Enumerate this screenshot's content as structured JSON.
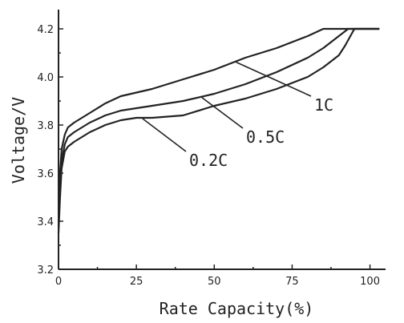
{
  "chart_data": {
    "type": "line",
    "xlabel": "Rate Capacity(%)",
    "ylabel": "Voltage/V",
    "xlim": [
      0,
      105
    ],
    "ylim": [
      3.2,
      4.28
    ],
    "xticks": [
      0,
      25,
      50,
      75,
      100
    ],
    "yticks": [
      3.2,
      3.4,
      3.6,
      3.8,
      4.0,
      4.2
    ],
    "ytick_labels": [
      "3.2",
      "3.4",
      "3.6",
      "3.8",
      "4.0",
      "4.2"
    ],
    "xtick_labels": [
      "0",
      "25",
      "50",
      "75",
      "100"
    ],
    "grid": false,
    "series": [
      {
        "name": "1C",
        "x": [
          0,
          0.5,
          1,
          2,
          3,
          5,
          10,
          15,
          20,
          30,
          40,
          50,
          60,
          70,
          80,
          85,
          90,
          95,
          100,
          103
        ],
        "y": [
          3.4,
          3.6,
          3.7,
          3.76,
          3.79,
          3.81,
          3.85,
          3.89,
          3.92,
          3.95,
          3.99,
          4.03,
          4.08,
          4.12,
          4.17,
          4.2,
          4.2,
          4.2,
          4.2,
          4.2
        ]
      },
      {
        "name": "0.5C",
        "x": [
          0,
          0.5,
          1,
          2,
          3,
          5,
          10,
          15,
          20,
          25,
          30,
          40,
          50,
          60,
          70,
          80,
          85,
          90,
          93,
          95,
          100,
          103
        ],
        "y": [
          3.38,
          3.55,
          3.65,
          3.72,
          3.75,
          3.77,
          3.81,
          3.84,
          3.86,
          3.87,
          3.88,
          3.9,
          3.93,
          3.97,
          4.02,
          4.08,
          4.12,
          4.17,
          4.2,
          4.2,
          4.2,
          4.2
        ]
      },
      {
        "name": "0.2C",
        "x": [
          0,
          0.5,
          1,
          2,
          3,
          5,
          10,
          15,
          20,
          25,
          30,
          40,
          50,
          60,
          70,
          80,
          85,
          90,
          92,
          95,
          100,
          103
        ],
        "y": [
          3.35,
          3.5,
          3.62,
          3.69,
          3.71,
          3.73,
          3.77,
          3.8,
          3.82,
          3.83,
          3.83,
          3.84,
          3.88,
          3.91,
          3.95,
          4.0,
          4.04,
          4.09,
          4.13,
          4.2,
          4.2,
          4.2
        ]
      }
    ],
    "annotations": [
      {
        "text": "1C",
        "series": "1C",
        "at_x": 57
      },
      {
        "text": "0.5C",
        "series": "0.5C",
        "at_x": 46
      },
      {
        "text": "0.2C",
        "series": "0.2C",
        "at_x": 27
      }
    ]
  }
}
